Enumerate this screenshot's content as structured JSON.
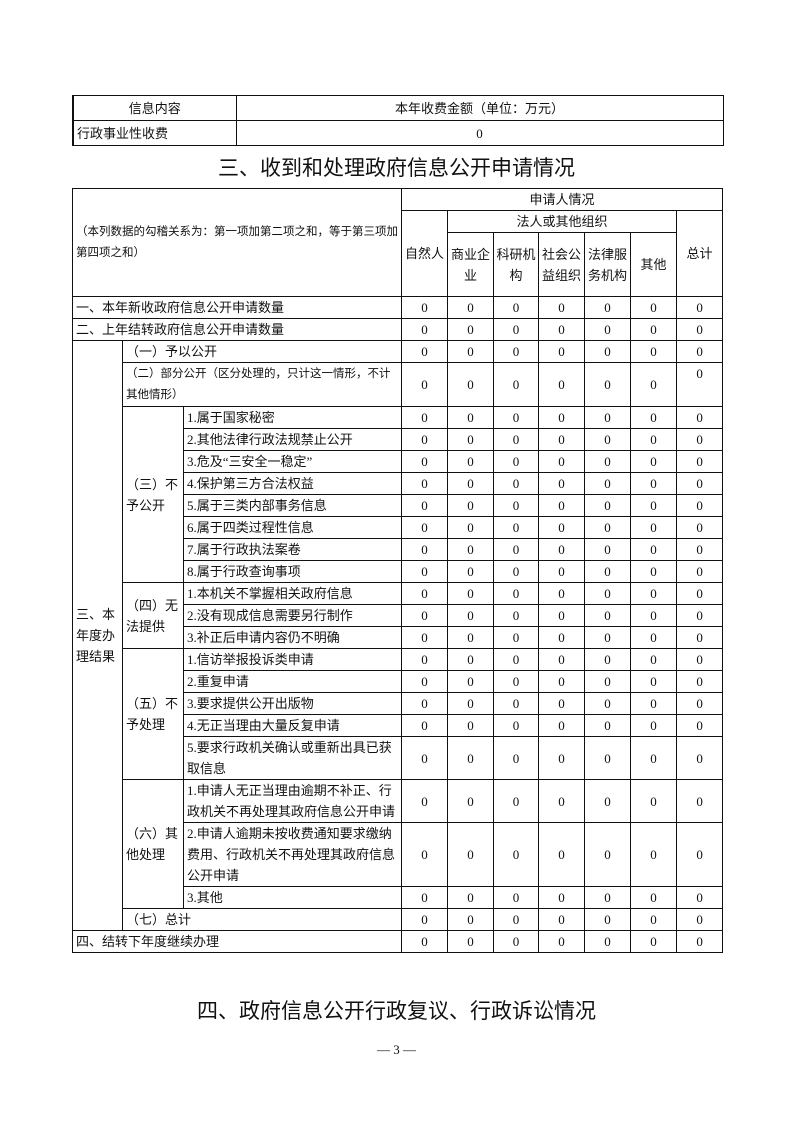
{
  "fee_table": {
    "headers": [
      "信息内容",
      "本年收费金额（单位：万元）"
    ],
    "row": {
      "label": "行政事业性收费",
      "value": "0"
    }
  },
  "section3_title": "三、收到和处理政府信息公开申请情况",
  "applications_table": {
    "note": "（本列数据的勾稽关系为：第一项加第二项之和，等于第三项加第四项之和）",
    "header": {
      "applicant": "申请人情况",
      "natural_person": "自然人",
      "legal_group": "法人或其他组织",
      "legal_cols": [
        "商业企业",
        "科研机构",
        "社会公益组织",
        "法律服务机构",
        "其他"
      ],
      "total": "总计"
    },
    "row1": {
      "label": "一、本年新收政府信息公开申请数量",
      "values": [
        "0",
        "0",
        "0",
        "0",
        "0",
        "0",
        "0"
      ]
    },
    "row2": {
      "label": "二、上年结转政府信息公开申请数量",
      "values": [
        "0",
        "0",
        "0",
        "0",
        "0",
        "0",
        "0"
      ]
    },
    "results": {
      "label": "三、本年度办理结果",
      "groups": [
        {
          "label": "（一）予以公开",
          "values": [
            "0",
            "0",
            "0",
            "0",
            "0",
            "0",
            "0"
          ]
        },
        {
          "label": "（二）部分公开（区分处理的，只计这一情形，不计其他情形）",
          "values": [
            "0",
            "0",
            "0",
            "0",
            "0",
            "0",
            "0"
          ]
        },
        {
          "label": "（三）不予公开",
          "items": [
            {
              "label": "1.属于国家秘密",
              "values": [
                "0",
                "0",
                "0",
                "0",
                "0",
                "0",
                "0"
              ]
            },
            {
              "label": "2.其他法律行政法规禁止公开",
              "values": [
                "0",
                "0",
                "0",
                "0",
                "0",
                "0",
                "0"
              ]
            },
            {
              "label": "3.危及“三安全一稳定”",
              "values": [
                "0",
                "0",
                "0",
                "0",
                "0",
                "0",
                "0"
              ]
            },
            {
              "label": "4.保护第三方合法权益",
              "values": [
                "0",
                "0",
                "0",
                "0",
                "0",
                "0",
                "0"
              ]
            },
            {
              "label": "5.属于三类内部事务信息",
              "values": [
                "0",
                "0",
                "0",
                "0",
                "0",
                "0",
                "0"
              ]
            },
            {
              "label": "6.属于四类过程性信息",
              "values": [
                "0",
                "0",
                "0",
                "0",
                "0",
                "0",
                "0"
              ]
            },
            {
              "label": "7.属于行政执法案卷",
              "values": [
                "0",
                "0",
                "0",
                "0",
                "0",
                "0",
                "0"
              ]
            },
            {
              "label": "8.属于行政查询事项",
              "values": [
                "0",
                "0",
                "0",
                "0",
                "0",
                "0",
                "0"
              ]
            }
          ]
        },
        {
          "label": "（四）无法提供",
          "items": [
            {
              "label": "1.本机关不掌握相关政府信息",
              "values": [
                "0",
                "0",
                "0",
                "0",
                "0",
                "0",
                "0"
              ]
            },
            {
              "label": "2.没有现成信息需要另行制作",
              "values": [
                "0",
                "0",
                "0",
                "0",
                "0",
                "0",
                "0"
              ]
            },
            {
              "label": "3.补正后申请内容仍不明确",
              "values": [
                "0",
                "0",
                "0",
                "0",
                "0",
                "0",
                "0"
              ]
            }
          ]
        },
        {
          "label": "（五）不予处理",
          "items": [
            {
              "label": "1.信访举报投诉类申请",
              "values": [
                "0",
                "0",
                "0",
                "0",
                "0",
                "0",
                "0"
              ]
            },
            {
              "label": "2.重复申请",
              "values": [
                "0",
                "0",
                "0",
                "0",
                "0",
                "0",
                "0"
              ]
            },
            {
              "label": "3.要求提供公开出版物",
              "values": [
                "0",
                "0",
                "0",
                "0",
                "0",
                "0",
                "0"
              ]
            },
            {
              "label": "4.无正当理由大量反复申请",
              "values": [
                "0",
                "0",
                "0",
                "0",
                "0",
                "0",
                "0"
              ]
            },
            {
              "label": "5.要求行政机关确认或重新出具已获取信息",
              "values": [
                "0",
                "0",
                "0",
                "0",
                "0",
                "0",
                "0"
              ]
            }
          ]
        },
        {
          "label": "（六）其他处理",
          "items": [
            {
              "label": "1.申请人无正当理由逾期不补正、行政机关不再处理其政府信息公开申请",
              "values": [
                "0",
                "0",
                "0",
                "0",
                "0",
                "0",
                "0"
              ]
            },
            {
              "label": "2.申请人逾期未按收费通知要求缴纳费用、行政机关不再处理其政府信息公开申请",
              "values": [
                "0",
                "0",
                "0",
                "0",
                "0",
                "0",
                "0"
              ]
            },
            {
              "label": "3.其他",
              "values": [
                "0",
                "0",
                "0",
                "0",
                "0",
                "0",
                "0"
              ]
            }
          ]
        },
        {
          "label": "（七）总计",
          "values": [
            "0",
            "0",
            "0",
            "0",
            "0",
            "0",
            "0"
          ]
        }
      ]
    },
    "row4": {
      "label": "四、结转下年度继续办理",
      "values": [
        "0",
        "0",
        "0",
        "0",
        "0",
        "0",
        "0"
      ]
    }
  },
  "section4_title": "四、政府信息公开行政复议、行政诉讼情况",
  "page_number": "— 3 —"
}
